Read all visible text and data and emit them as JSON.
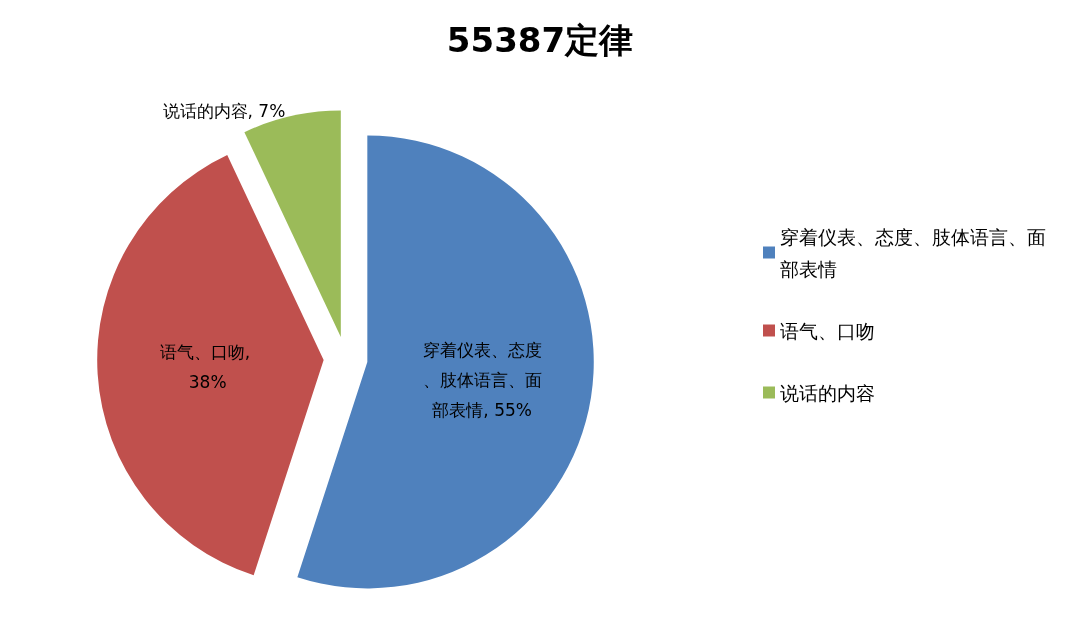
{
  "chart_data": {
    "type": "pie",
    "title": "55387定律",
    "categories": [
      "穿着仪表、态度、肢体语言、面部表情",
      "语气、口吻",
      "说话的内容"
    ],
    "values": [
      55,
      38,
      7
    ],
    "colors": [
      "#4f81bd",
      "#c0504d",
      "#9bbb59"
    ],
    "value_labels": [
      "穿着仪表、态度、肢体语言、面部表情, 55%",
      "语气、口吻, 38%",
      "说话的内容, 7%"
    ],
    "legend": "right"
  }
}
